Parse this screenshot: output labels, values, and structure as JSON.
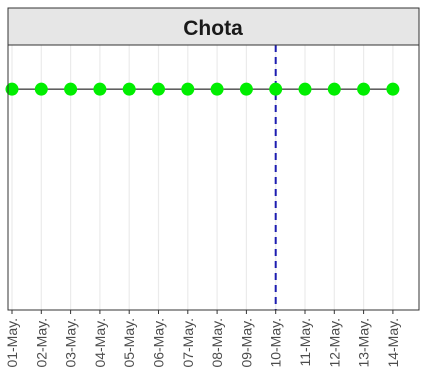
{
  "chart_data": {
    "type": "line",
    "title": "",
    "xlabel": "",
    "ylabel": "",
    "panel_title": "Chota",
    "categories": [
      "01-May.",
      "02-May.",
      "03-May.",
      "04-May.",
      "05-May.",
      "06-May.",
      "07-May.",
      "08-May.",
      "09-May.",
      "10-May.",
      "11-May.",
      "12-May.",
      "13-May.",
      "14-May."
    ],
    "series": [
      {
        "values": [
          0,
          0,
          0,
          0,
          0,
          0,
          0,
          0,
          0,
          0,
          0,
          0,
          0,
          0
        ]
      }
    ],
    "vline_at": "09-May.",
    "vline_offset": 1,
    "ylim": [
      -1,
      0.2
    ],
    "grid": "vertical",
    "legend": "none",
    "colors": {
      "points": "#00ee00",
      "line": "#000000",
      "vline": "#1c1cb0",
      "grid": "#ebebeb",
      "strip_bg": "#e6e6e6",
      "strip_border": "#333333",
      "panel_border": "#333333"
    }
  }
}
